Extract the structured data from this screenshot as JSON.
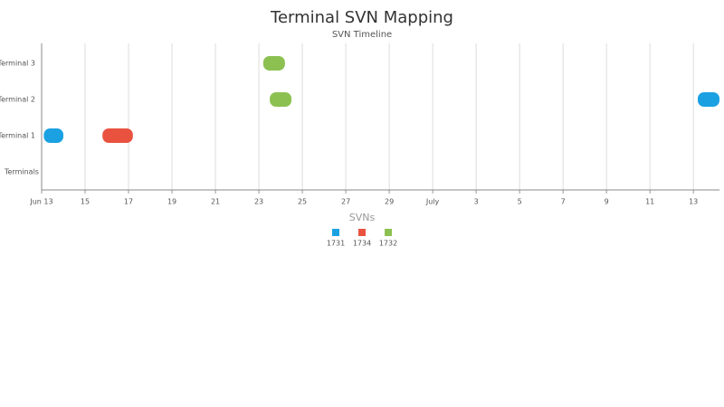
{
  "chart_data": {
    "type": "timeline",
    "title": "Terminal SVN Mapping",
    "subtitle": "SVN Timeline",
    "y_label": "Terminals",
    "categories": [
      "Terminal 1",
      "Terminal 2",
      "Terminal 3"
    ],
    "xlim": [
      13,
      44.2
    ],
    "xticks": [
      {
        "value": 13,
        "label": "Jun 13"
      },
      15,
      17,
      19,
      21,
      23,
      25,
      27,
      29,
      {
        "value": 31,
        "label": "July"
      },
      {
        "value": 33,
        "label": "3"
      },
      {
        "value": 35,
        "label": "5"
      },
      {
        "value": 37,
        "label": "7"
      },
      {
        "value": 39,
        "label": "9"
      },
      {
        "value": 41,
        "label": "11"
      },
      {
        "value": 43,
        "label": "13"
      }
    ],
    "grid": true,
    "legend_title": "SVNs",
    "series": [
      {
        "name": "1731",
        "color": "#1ba1e2",
        "categories": [
          "Terminal 1",
          "Terminal 2"
        ],
        "start": [
          13.1,
          43.2
        ],
        "end": [
          14.0,
          44.2
        ]
      },
      {
        "name": "1734",
        "color": "#e9523f",
        "categories": [
          "Terminal 1"
        ],
        "start": [
          15.8
        ],
        "end": [
          17.2
        ]
      },
      {
        "name": "1732",
        "color": "#8cc152",
        "categories": [
          "Terminal 2",
          "Terminal 3"
        ],
        "start": [
          23.5,
          23.2
        ],
        "end": [
          24.5,
          24.2
        ]
      }
    ]
  }
}
